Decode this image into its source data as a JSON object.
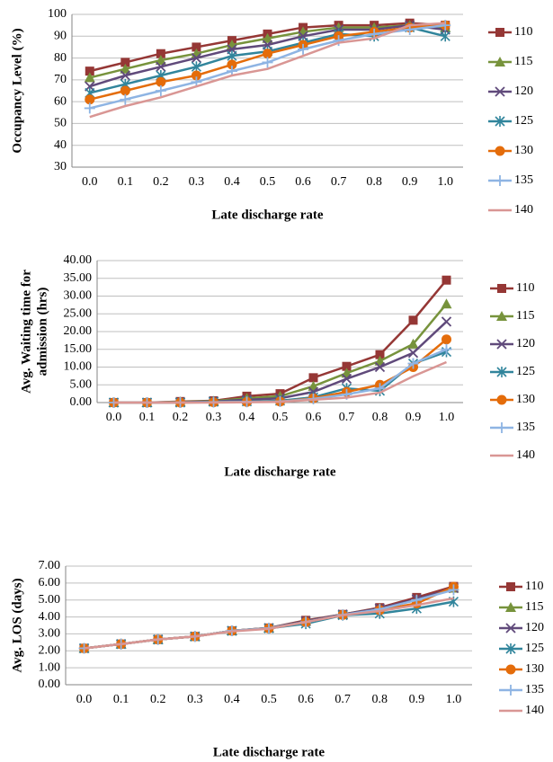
{
  "chart_data": [
    {
      "type": "line",
      "y_label": [
        "Occupancy Level (%)"
      ],
      "x_label": "Late discharge rate",
      "categories": [
        "0.0",
        "0.1",
        "0.2",
        "0.3",
        "0.4",
        "0.5",
        "0.6",
        "0.7",
        "0.8",
        "0.9",
        "1.0"
      ],
      "ylim": [
        30,
        100
      ],
      "yticks": [
        30,
        40,
        50,
        60,
        70,
        80,
        90,
        100
      ],
      "grid": true,
      "series": [
        {
          "name": "110",
          "color": "#953735",
          "marker": "square",
          "values": [
            74,
            78,
            82,
            85,
            88,
            91,
            94,
            95,
            95,
            96,
            95
          ]
        },
        {
          "name": "115",
          "color": "#77933c",
          "marker": "triangle",
          "values": [
            71,
            75,
            79,
            82,
            86,
            89,
            92,
            94,
            94,
            95,
            94
          ]
        },
        {
          "name": "120",
          "color": "#604a7b",
          "marker": "x",
          "values": [
            67,
            72,
            76,
            80,
            84,
            86,
            90,
            93,
            93,
            95,
            93
          ]
        },
        {
          "name": "125",
          "color": "#31859c",
          "marker": "asterisk",
          "values": [
            64,
            68,
            72,
            76,
            81,
            83,
            87,
            91,
            90,
            94,
            90
          ]
        },
        {
          "name": "130",
          "color": "#e46c0a",
          "marker": "circle",
          "values": [
            61,
            65,
            69,
            72,
            77,
            82,
            86,
            90,
            92,
            94,
            95
          ]
        },
        {
          "name": "135",
          "color": "#8eb4e3",
          "marker": "plus",
          "values": [
            57,
            61,
            65,
            69,
            74,
            78,
            84,
            88,
            91,
            93,
            95
          ]
        },
        {
          "name": "140",
          "color": "#d99694",
          "marker": "none",
          "values": [
            53,
            58,
            62,
            67,
            72,
            75,
            81,
            87,
            89,
            95,
            96
          ]
        }
      ]
    },
    {
      "type": "line",
      "y_label": [
        "Avg. Waiting time for",
        "admission (hrs)"
      ],
      "x_label": "Late discharge rate",
      "categories": [
        "0.0",
        "0.1",
        "0.2",
        "0.3",
        "0.4",
        "0.5",
        "0.6",
        "0.7",
        "0.8",
        "0.9",
        "1.0"
      ],
      "ylim": [
        0,
        40
      ],
      "grid": true,
      "yticks": [
        {
          "value": 0,
          "label": "0.00"
        },
        {
          "value": 5,
          "label": "5.00"
        },
        {
          "value": 10,
          "label": "10.00"
        },
        {
          "value": 15,
          "label": "15.00"
        },
        {
          "value": 20,
          "label": "20.00"
        },
        {
          "value": 25,
          "label": "25.00"
        },
        {
          "value": 30,
          "label": "30.00"
        },
        {
          "value": 35,
          "label": "35.00"
        },
        {
          "value": 40,
          "label": "40.00"
        }
      ],
      "series": [
        {
          "name": "110",
          "color": "#953735",
          "marker": "square",
          "values": [
            0,
            0,
            0.3,
            0.5,
            1.8,
            2.5,
            7,
            10.2,
            13.5,
            23.2,
            34.5
          ]
        },
        {
          "name": "115",
          "color": "#77933c",
          "marker": "triangle",
          "values": [
            0,
            0,
            0.2,
            0.4,
            1.2,
            1.8,
            4.6,
            8.3,
            11.7,
            16.5,
            27.8
          ]
        },
        {
          "name": "120",
          "color": "#604a7b",
          "marker": "x",
          "values": [
            0,
            0,
            0.1,
            0.3,
            0.8,
            1.2,
            3,
            6.7,
            10,
            14,
            22.8
          ]
        },
        {
          "name": "125",
          "color": "#31859c",
          "marker": "asterisk",
          "values": [
            0,
            0,
            0,
            0.2,
            0.3,
            0.5,
            1.5,
            4,
            3.3,
            11,
            14.3
          ]
        },
        {
          "name": "130",
          "color": "#e46c0a",
          "marker": "circle",
          "values": [
            0,
            0,
            0,
            0.1,
            0.2,
            0.3,
            1.2,
            3,
            5,
            10,
            17.8
          ]
        },
        {
          "name": "135",
          "color": "#8eb4e3",
          "marker": "plus",
          "values": [
            0,
            0,
            0,
            0.1,
            0.2,
            0.3,
            1,
            2.3,
            4,
            11,
            15
          ]
        },
        {
          "name": "140",
          "color": "#d99694",
          "marker": "none",
          "values": [
            0,
            0,
            0,
            0,
            0.1,
            0.2,
            0.8,
            1.4,
            2.8,
            7.4,
            11.4
          ]
        }
      ]
    },
    {
      "type": "line",
      "y_label": [
        "Avg. LOS (days)"
      ],
      "x_label": "Late discharge rate",
      "categories": [
        "0.0",
        "0.1",
        "0.2",
        "0.3",
        "0.4",
        "0.5",
        "0.6",
        "0.7",
        "0.8",
        "0.9",
        "1.0"
      ],
      "ylim": [
        0,
        7
      ],
      "grid": true,
      "yticks": [
        {
          "value": 0,
          "label": "0.00"
        },
        {
          "value": 1,
          "label": "1.00"
        },
        {
          "value": 2,
          "label": "2.00"
        },
        {
          "value": 3,
          "label": "3.00"
        },
        {
          "value": 4,
          "label": "4.00"
        },
        {
          "value": 5,
          "label": "5.00"
        },
        {
          "value": 6,
          "label": "6.00"
        },
        {
          "value": 7,
          "label": "7.00"
        }
      ],
      "series": [
        {
          "name": "110",
          "color": "#953735",
          "marker": "square",
          "values": [
            2.15,
            2.4,
            2.67,
            2.85,
            3.18,
            3.35,
            3.8,
            4.15,
            4.55,
            5.15,
            5.8
          ]
        },
        {
          "name": "115",
          "color": "#77933c",
          "marker": "triangle",
          "values": [
            2.15,
            2.4,
            2.67,
            2.85,
            3.18,
            3.35,
            3.75,
            4.15,
            4.5,
            5.0,
            5.7
          ]
        },
        {
          "name": "120",
          "color": "#604a7b",
          "marker": "x",
          "values": [
            2.15,
            2.4,
            2.67,
            2.85,
            3.18,
            3.35,
            3.75,
            4.15,
            4.5,
            5.05,
            5.7
          ]
        },
        {
          "name": "125",
          "color": "#31859c",
          "marker": "asterisk",
          "values": [
            2.15,
            2.4,
            2.67,
            2.85,
            3.18,
            3.33,
            3.6,
            4.1,
            4.2,
            4.5,
            4.9
          ]
        },
        {
          "name": "130",
          "color": "#e46c0a",
          "marker": "circle",
          "values": [
            2.15,
            2.4,
            2.67,
            2.85,
            3.18,
            3.33,
            3.7,
            4.12,
            4.4,
            4.8,
            5.78
          ]
        },
        {
          "name": "135",
          "color": "#8eb4e3",
          "marker": "plus",
          "values": [
            2.15,
            2.4,
            2.67,
            2.85,
            3.18,
            3.33,
            3.7,
            4.12,
            4.45,
            5.0,
            5.6
          ]
        },
        {
          "name": "140",
          "color": "#d99694",
          "marker": "none",
          "values": [
            2.15,
            2.4,
            2.67,
            2.85,
            3.15,
            3.3,
            3.7,
            4.1,
            4.35,
            4.7,
            5.1
          ]
        }
      ]
    }
  ]
}
